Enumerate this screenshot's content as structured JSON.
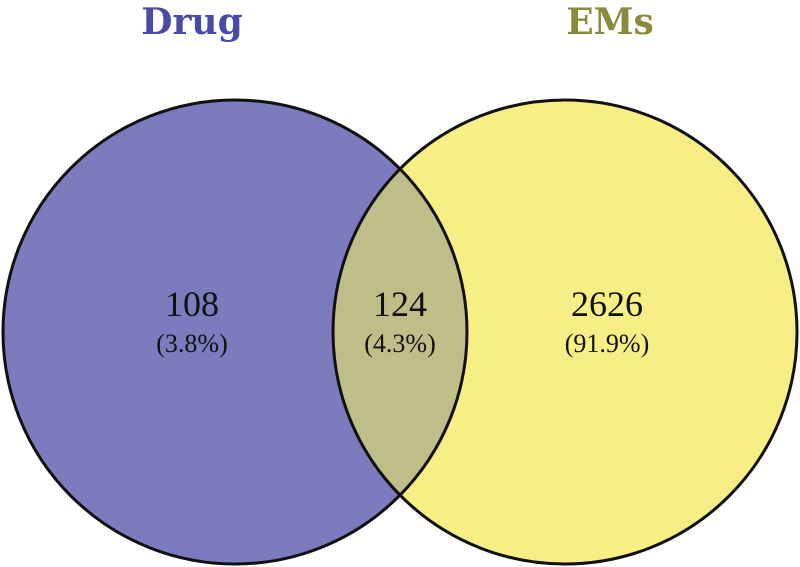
{
  "venn": {
    "sets": [
      {
        "key": "left",
        "label": "Drug",
        "color": "#7b7bbd",
        "label_color": "#4a4aa8"
      },
      {
        "key": "right",
        "label": "EMs",
        "color": "#f7ef86",
        "label_color": "#8b8a3a"
      }
    ],
    "intersection_color": "#bfbd88",
    "outline_color": "#111111",
    "regions": {
      "left_only": {
        "count": "108",
        "percent": "(3.8%)"
      },
      "both": {
        "count": "124",
        "percent": "(4.3%)"
      },
      "right_only": {
        "count": "2626",
        "percent": "(91.9%)"
      }
    }
  }
}
